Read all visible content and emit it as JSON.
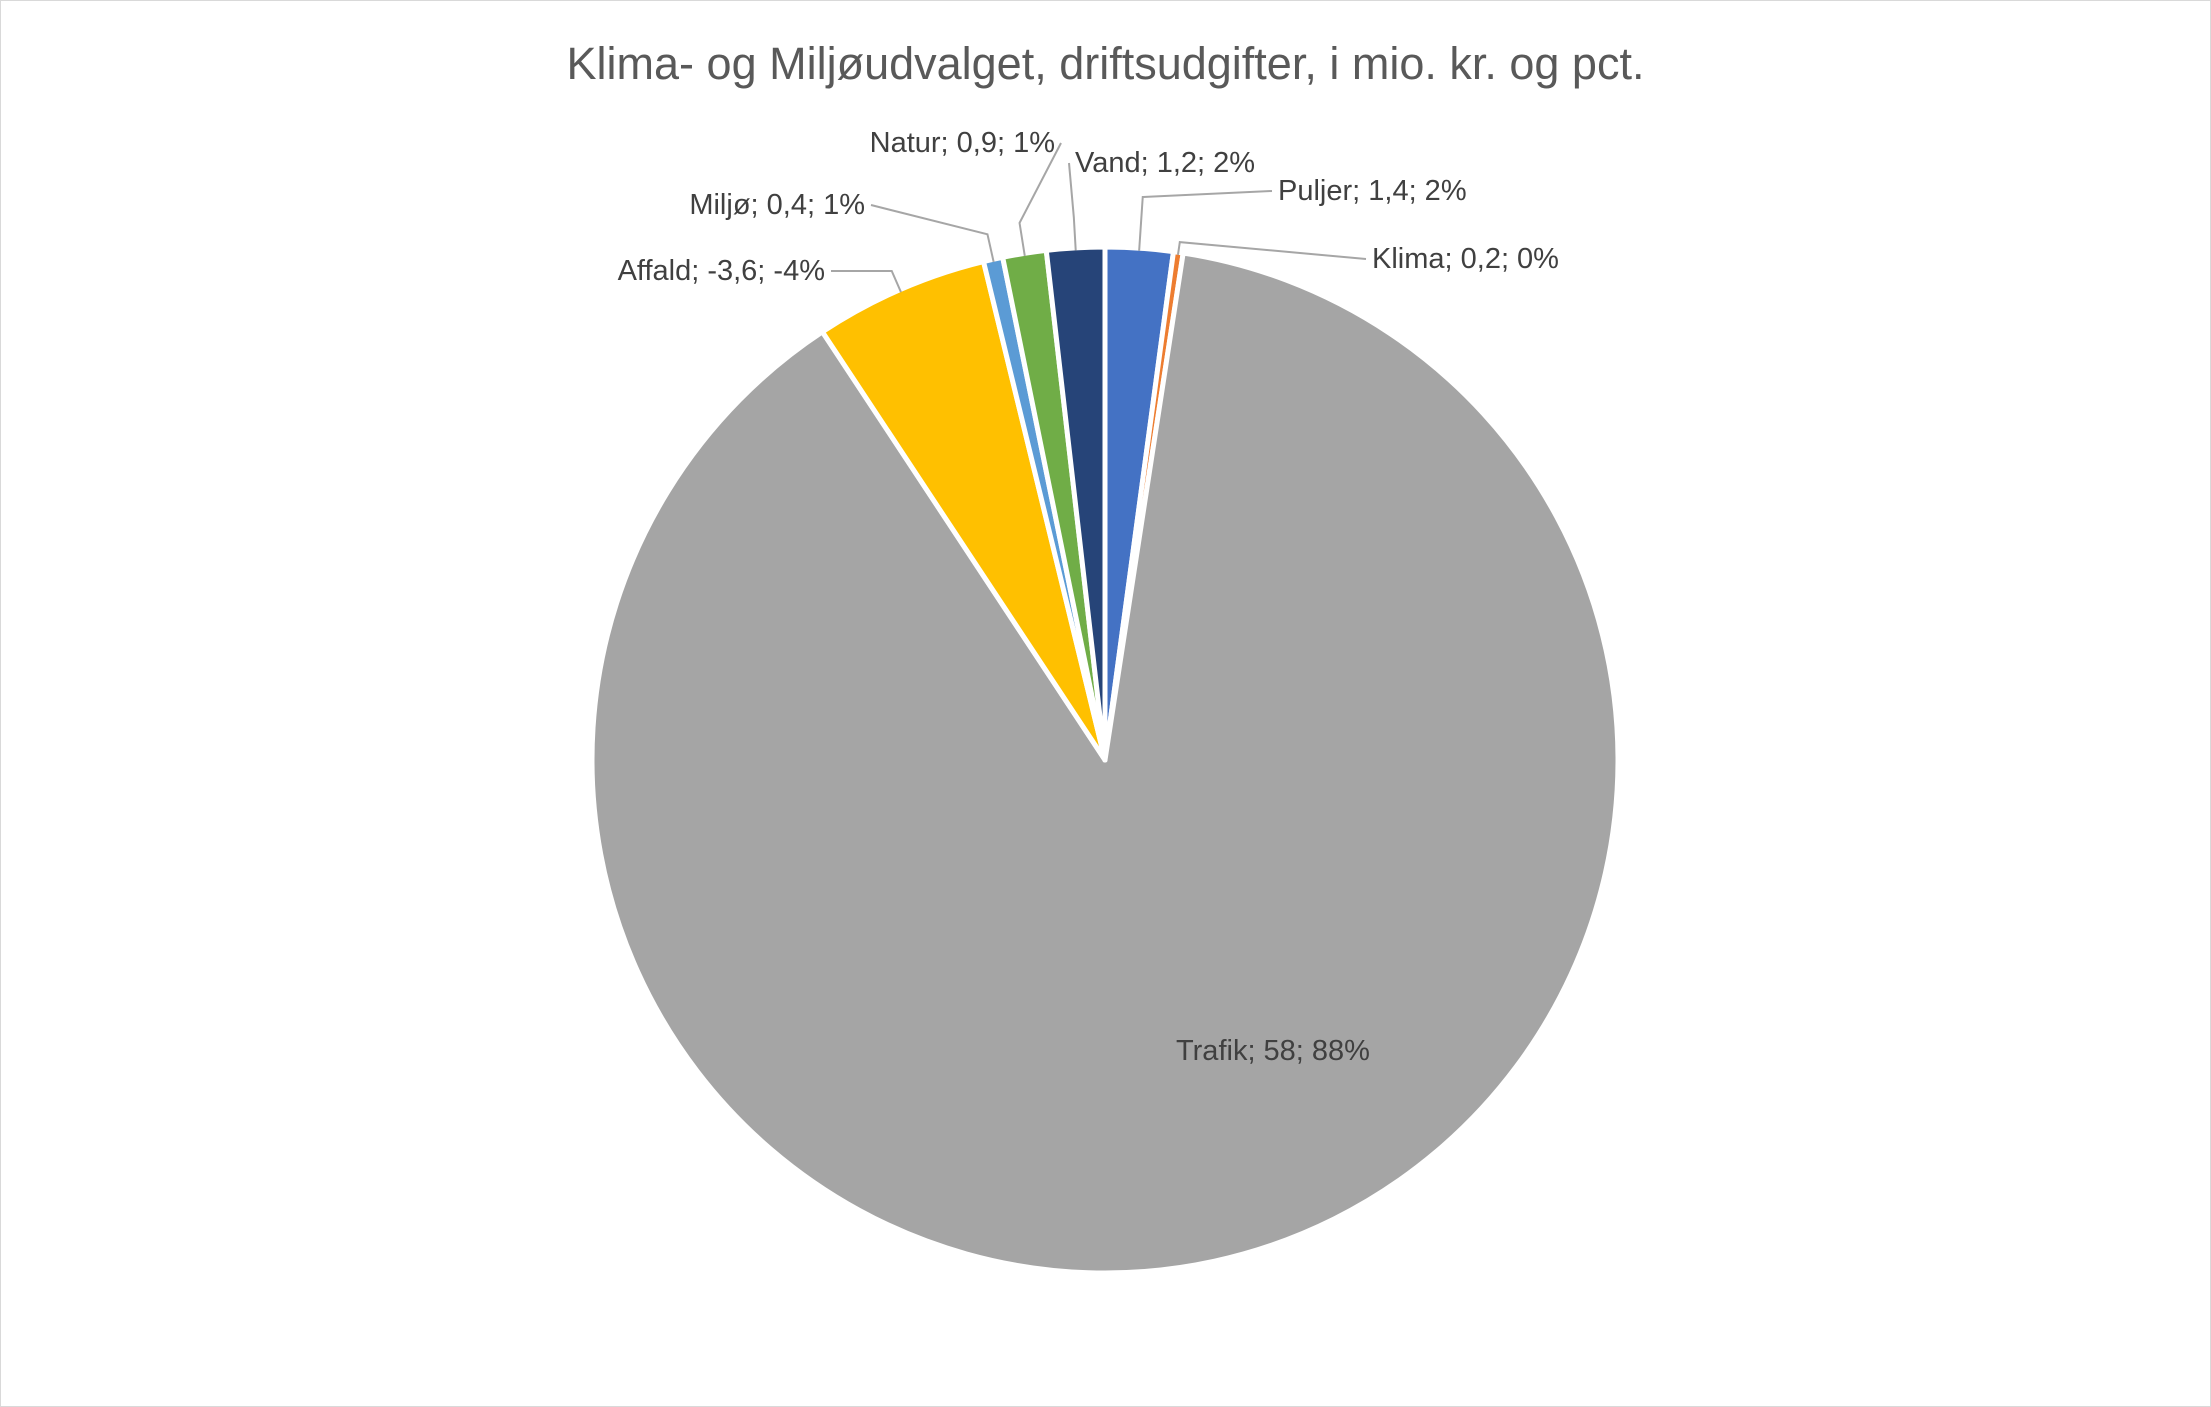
{
  "chart_data": {
    "type": "pie",
    "title": "Klima- og Miljøudvalget, driftsudgifter, i mio. kr. og pct.",
    "slices": [
      {
        "name": "Puljer",
        "value": 1.4,
        "percent": 2,
        "label": "Puljer; 1,4; 2%",
        "color": "#4472c4"
      },
      {
        "name": "Klima",
        "value": 0.2,
        "percent": 0,
        "label": "Klima; 0,2; 0%",
        "color": "#ed7d31"
      },
      {
        "name": "Trafik",
        "value": 58,
        "percent": 88,
        "label": "Trafik; 58; 88%",
        "color": "#a5a5a5"
      },
      {
        "name": "Affald",
        "value": -3.6,
        "percent": -4,
        "label": "Affald; -3,6; -4%",
        "color": "#ffc000"
      },
      {
        "name": "Miljø",
        "value": 0.4,
        "percent": 1,
        "label": "Miljø; 0,4; 1%",
        "color": "#5b9bd5"
      },
      {
        "name": "Natur",
        "value": 0.9,
        "percent": 1,
        "label": "Natur; 0,9; 1%",
        "color": "#70ad47"
      },
      {
        "name": "Vand",
        "value": 1.2,
        "percent": 2,
        "label": "Vand; 1,2; 2%",
        "color": "#264478"
      }
    ]
  }
}
